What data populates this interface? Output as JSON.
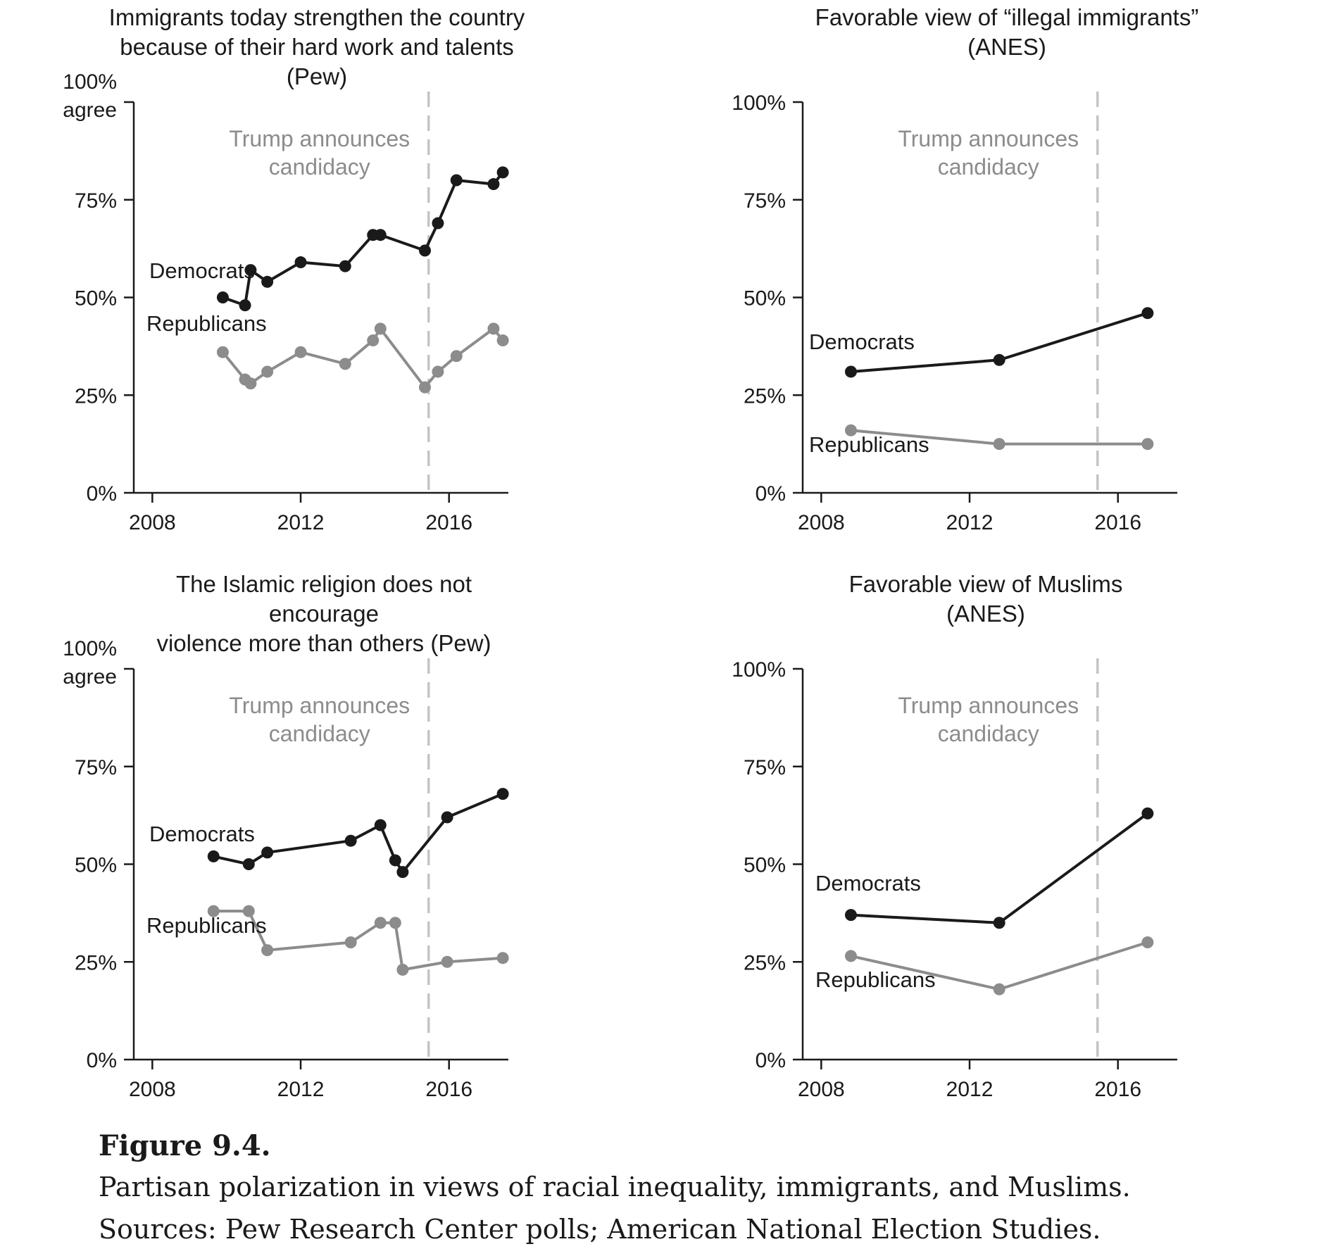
{
  "chart_data": [
    {
      "type": "line",
      "title": "Immigrants today strengthen the country because of their hard work and talents (Pew)",
      "ylabel": "100%\nagree",
      "ytick_labels": [
        "0%",
        "25%",
        "50%",
        "75%",
        "100%"
      ],
      "xtick_labels": [
        "2008",
        "2012",
        "2016"
      ],
      "ylim": [
        0,
        100
      ],
      "xlim": [
        2007.5,
        2017.6
      ],
      "annotation": "Trump announces\ncandidacy",
      "annotation_x": 2015.45,
      "series": [
        {
          "name": "Democrats",
          "color": "#1a1a1a",
          "x": [
            2009.9,
            2010.5,
            2010.65,
            2011.1,
            2012.0,
            2013.2,
            2013.95,
            2014.15,
            2015.35,
            2015.7,
            2016.2,
            2017.2,
            2017.45
          ],
          "y": [
            50,
            48,
            57,
            54,
            59,
            58,
            66,
            66,
            62,
            69,
            80,
            79,
            82
          ]
        },
        {
          "name": "Republicans",
          "color": "#8c8c8c",
          "x": [
            2009.9,
            2010.5,
            2010.65,
            2011.1,
            2012.0,
            2013.2,
            2013.95,
            2014.15,
            2015.35,
            2015.7,
            2016.2,
            2017.2,
            2017.45
          ],
          "y": [
            36,
            29,
            28,
            31,
            36,
            33,
            39,
            42,
            27,
            31,
            35,
            42,
            39
          ]
        }
      ]
    },
    {
      "type": "line",
      "title": "Favorable view of “illegal immigrants”\n(ANES)",
      "ylabel": "100%",
      "ytick_labels": [
        "0%",
        "25%",
        "50%",
        "75%",
        "100%"
      ],
      "xtick_labels": [
        "2008",
        "2012",
        "2016"
      ],
      "ylim": [
        0,
        100
      ],
      "xlim": [
        2007.5,
        2017.6
      ],
      "annotation": "Trump announces\ncandidacy",
      "annotation_x": 2015.45,
      "series": [
        {
          "name": "Democrats",
          "color": "#1a1a1a",
          "x": [
            2008.8,
            2012.8,
            2016.8
          ],
          "y": [
            31,
            34,
            46
          ]
        },
        {
          "name": "Republicans",
          "color": "#8c8c8c",
          "x": [
            2008.8,
            2012.8,
            2016.8
          ],
          "y": [
            16,
            12.5,
            12.5
          ]
        }
      ]
    },
    {
      "type": "line",
      "title": "The Islamic religion does not encourage\nviolence more than others (Pew)",
      "ylabel": "100%\nagree",
      "ytick_labels": [
        "0%",
        "25%",
        "50%",
        "75%",
        "100%"
      ],
      "xtick_labels": [
        "2008",
        "2012",
        "2016"
      ],
      "ylim": [
        0,
        100
      ],
      "xlim": [
        2007.5,
        2017.6
      ],
      "annotation": "Trump announces\ncandidacy",
      "annotation_x": 2015.45,
      "series": [
        {
          "name": "Democrats",
          "color": "#1a1a1a",
          "x": [
            2009.65,
            2010.6,
            2011.1,
            2013.35,
            2014.15,
            2014.55,
            2014.75,
            2015.95,
            2017.45
          ],
          "y": [
            52,
            50,
            53,
            56,
            60,
            51,
            48,
            62,
            68
          ]
        },
        {
          "name": "Republicans",
          "color": "#8c8c8c",
          "x": [
            2009.65,
            2010.6,
            2011.1,
            2013.35,
            2014.15,
            2014.55,
            2014.75,
            2015.95,
            2017.45
          ],
          "y": [
            38,
            38,
            28,
            30,
            35,
            35,
            23,
            25,
            26
          ]
        }
      ]
    },
    {
      "type": "line",
      "title": "Favorable view of Muslims\n(ANES)",
      "ylabel": "100%",
      "ytick_labels": [
        "0%",
        "25%",
        "50%",
        "75%",
        "100%"
      ],
      "xtick_labels": [
        "2008",
        "2012",
        "2016"
      ],
      "ylim": [
        0,
        100
      ],
      "xlim": [
        2007.5,
        2017.6
      ],
      "annotation": "Trump announces\ncandidacy",
      "annotation_x": 2015.45,
      "series": [
        {
          "name": "Democrats",
          "color": "#1a1a1a",
          "x": [
            2008.8,
            2012.8,
            2016.8
          ],
          "y": [
            37,
            35,
            63
          ]
        },
        {
          "name": "Republicans",
          "color": "#8c8c8c",
          "x": [
            2008.8,
            2012.8,
            2016.8
          ],
          "y": [
            26.5,
            18,
            30
          ]
        }
      ]
    }
  ],
  "caption": {
    "figure_label": "Figure 9.4.",
    "line1": "Partisan polarization in views of racial inequality, immigrants, and Muslims.",
    "line2": "Sources: Pew Research Center polls; American National Election Studies."
  }
}
